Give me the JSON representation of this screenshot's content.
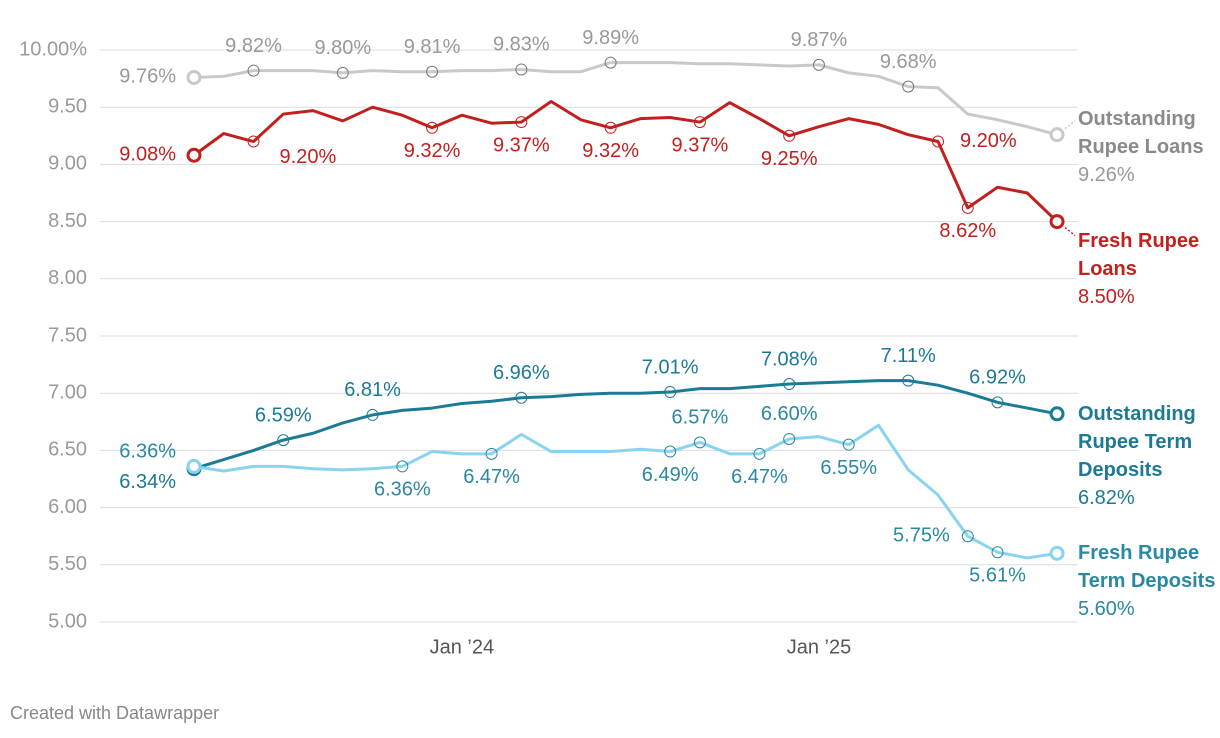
{
  "chart_data": {
    "type": "line",
    "x": [
      "2023-04",
      "2023-05",
      "2023-06",
      "2023-07",
      "2023-08",
      "2023-09",
      "2023-10",
      "2023-11",
      "2023-12",
      "2024-01",
      "2024-02",
      "2024-03",
      "2024-04",
      "2024-05",
      "2024-06",
      "2024-07",
      "2024-08",
      "2024-09",
      "2024-10",
      "2024-11",
      "2024-12",
      "2025-01",
      "2025-02",
      "2025-03",
      "2025-04",
      "2025-05",
      "2025-06",
      "2025-07",
      "2025-08",
      "2025-09"
    ],
    "xticks": [
      {
        "value": "2024-01",
        "label": "Jan ’24"
      },
      {
        "value": "2025-01",
        "label": "Jan ’25"
      }
    ],
    "ylim": [
      5,
      10
    ],
    "yticks": [
      {
        "value": 5,
        "label": "5.00"
      },
      {
        "value": 5.5,
        "label": "5.50"
      },
      {
        "value": 6,
        "label": "6.00"
      },
      {
        "value": 6.5,
        "label": "6.50"
      },
      {
        "value": 7,
        "label": "7.00"
      },
      {
        "value": 7.5,
        "label": "7.50"
      },
      {
        "value": 8,
        "label": "8.00"
      },
      {
        "value": 8.5,
        "label": "8.50"
      },
      {
        "value": 9,
        "label": "9.00"
      },
      {
        "value": 9.5,
        "label": "9.50"
      },
      {
        "value": 10,
        "label": "10.00%"
      }
    ],
    "grid": true,
    "series": [
      {
        "name": "Outstanding Rupee Loans",
        "color": "#c9c9c9",
        "values": [
          9.76,
          9.77,
          9.82,
          9.82,
          9.82,
          9.8,
          9.82,
          9.81,
          9.81,
          9.82,
          9.82,
          9.83,
          9.81,
          9.81,
          9.89,
          9.89,
          9.89,
          9.88,
          9.88,
          9.87,
          9.86,
          9.87,
          9.8,
          9.77,
          9.68,
          9.67,
          9.44,
          9.39,
          9.33,
          9.26
        ],
        "value_labels": [
          "9.76%",
          null,
          "9.82%",
          null,
          null,
          "9.80%",
          null,
          null,
          "9.81%",
          null,
          null,
          "9.83%",
          null,
          null,
          "9.89%",
          null,
          null,
          null,
          null,
          null,
          null,
          "9.87%",
          null,
          null,
          "9.68%",
          null,
          null,
          null,
          null,
          "9.26%"
        ]
      },
      {
        "name": "Fresh Rupee Loans",
        "color": "#c2201f",
        "values": [
          9.08,
          9.27,
          9.2,
          9.44,
          9.47,
          9.38,
          9.5,
          9.43,
          9.32,
          9.43,
          9.36,
          9.37,
          9.55,
          9.39,
          9.32,
          9.4,
          9.41,
          9.37,
          9.54,
          9.4,
          9.25,
          9.33,
          9.4,
          9.35,
          9.26,
          9.2,
          8.62,
          8.8,
          8.75,
          8.5
        ],
        "value_labels": [
          "9.08%",
          null,
          "9.20%",
          null,
          null,
          null,
          null,
          null,
          "9.32%",
          null,
          null,
          "9.37%",
          null,
          null,
          "9.32%",
          null,
          null,
          "9.37%",
          null,
          null,
          "9.25%",
          null,
          null,
          null,
          null,
          "9.20%",
          "8.62%",
          null,
          null,
          "8.50%"
        ]
      },
      {
        "name": "Outstanding Rupee Term Deposits",
        "color": "#1b7a95",
        "values": [
          6.34,
          6.42,
          6.5,
          6.59,
          6.65,
          6.74,
          6.81,
          6.85,
          6.87,
          6.91,
          6.93,
          6.96,
          6.97,
          6.99,
          7.0,
          7.0,
          7.01,
          7.04,
          7.04,
          7.06,
          7.08,
          7.09,
          7.1,
          7.11,
          7.11,
          7.07,
          7.0,
          6.92,
          6.87,
          6.82
        ],
        "value_labels": [
          "6.34%",
          null,
          null,
          "6.59%",
          null,
          null,
          "6.81%",
          null,
          null,
          null,
          null,
          "6.96%",
          null,
          null,
          null,
          null,
          "7.01%",
          null,
          null,
          null,
          "7.08%",
          null,
          null,
          null,
          "7.11%",
          null,
          null,
          "6.92%",
          null,
          "6.82%"
        ]
      },
      {
        "name": "Fresh Rupee Term Deposits",
        "color": "#88d4ef",
        "values": [
          6.36,
          6.32,
          6.36,
          6.36,
          6.34,
          6.33,
          6.34,
          6.36,
          6.49,
          6.47,
          6.47,
          6.64,
          6.49,
          6.49,
          6.49,
          6.51,
          6.49,
          6.57,
          6.47,
          6.47,
          6.6,
          6.62,
          6.55,
          6.72,
          6.33,
          6.11,
          5.75,
          5.61,
          5.56,
          5.6
        ],
        "value_labels": [
          "6.36%",
          null,
          null,
          null,
          null,
          null,
          null,
          "6.36%",
          null,
          null,
          "6.47%",
          null,
          null,
          null,
          null,
          null,
          "6.49%",
          "6.57%",
          null,
          "6.47%",
          "6.60%",
          null,
          "6.55%",
          null,
          null,
          null,
          "5.75%",
          "5.61%",
          null,
          "5.60%"
        ]
      }
    ]
  },
  "footer": "Created with Datawrapper"
}
